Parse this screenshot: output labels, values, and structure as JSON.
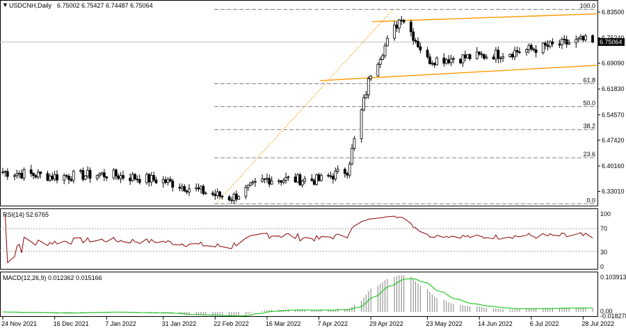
{
  "header": {
    "symbol": "USDCNH,Daily",
    "ohlc": "6.75002 6.75427 6.74487 6.75064"
  },
  "colors": {
    "fib": "#808080",
    "channel": "#ff9900",
    "rsi": "#8b0000",
    "macd_signal": "#00c000",
    "price_badge_bg": "#000000",
    "price_badge_fg": "#ffffff"
  },
  "price_panel": {
    "current_price": "6.75064",
    "y_ticks": [
      "6.83500",
      "6.76240",
      "6.69090",
      "6.61830",
      "6.54570",
      "6.47420",
      "6.40160",
      "6.33010"
    ],
    "fib_levels": [
      {
        "label": "100.0",
        "price": 6.8426
      },
      {
        "label": "61.8",
        "price": 6.6332
      },
      {
        "label": "50.0",
        "price": 6.5686
      },
      {
        "label": "38.2",
        "price": 6.5039
      },
      {
        "label": "23.6",
        "price": 6.4247
      },
      {
        "label": "0.0",
        "price": 6.2951
      }
    ]
  },
  "rsi_panel": {
    "label": "RSI(14) 52.6765",
    "levels": [
      "100",
      "70",
      "30",
      "0"
    ]
  },
  "macd_panel": {
    "label": "MACD(12,26,9) 0.012362 0.015166",
    "max_label": "0.103913",
    "zero_label": "0.00",
    "min_label": "-0.018278"
  },
  "x_labels": [
    "24 Nov 2021",
    "16 Dec 2021",
    "7 Jan 2022",
    "31 Jan 2022",
    "22 Feb 2022",
    "16 Mar 2022",
    "7 Apr 2022",
    "29 Apr 2022",
    "23 May 2022",
    "14 Jun 2022",
    "6 Jul 2022",
    "28 Jul 2022"
  ],
  "chart_data": {
    "type": "candlestick",
    "title": "USDCNH,Daily",
    "symbol": "USDCNH",
    "timeframe": "Daily",
    "last_bar": {
      "open": 6.75002,
      "high": 6.75427,
      "low": 6.74487,
      "close": 6.75064
    },
    "date_range": [
      "2021-11-24",
      "2022-08-01"
    ],
    "ylim": [
      6.29,
      6.865
    ],
    "fibonacci": [
      {
        "level": "100.0",
        "price": 6.8426
      },
      {
        "level": "61.8",
        "price": 6.6332
      },
      {
        "level": "50.0",
        "price": 6.5686
      },
      {
        "level": "38.2",
        "price": 6.5039
      },
      {
        "level": "23.6",
        "price": 6.4247
      },
      {
        "level": "0.0",
        "price": 6.2951
      }
    ],
    "close_anchors": [
      {
        "date": "2021-11-24",
        "close": 6.385
      },
      {
        "date": "2021-12-16",
        "close": 6.372
      },
      {
        "date": "2022-01-07",
        "close": 6.378
      },
      {
        "date": "2022-01-31",
        "close": 6.36
      },
      {
        "date": "2022-02-22",
        "close": 6.32
      },
      {
        "date": "2022-03-01",
        "close": 6.312
      },
      {
        "date": "2022-03-16",
        "close": 6.365
      },
      {
        "date": "2022-04-07",
        "close": 6.362
      },
      {
        "date": "2022-04-19",
        "close": 6.39
      },
      {
        "date": "2022-04-29",
        "close": 6.665
      },
      {
        "date": "2022-05-12",
        "close": 6.825
      },
      {
        "date": "2022-05-23",
        "close": 6.7
      },
      {
        "date": "2022-06-14",
        "close": 6.71
      },
      {
        "date": "2022-07-06",
        "close": 6.73
      },
      {
        "date": "2022-07-28",
        "close": 6.755
      },
      {
        "date": "2022-08-01",
        "close": 6.7506
      }
    ],
    "rsi": {
      "period": 14,
      "last": 52.6765,
      "levels": [
        100,
        70,
        30,
        0
      ]
    },
    "macd": {
      "fast": 12,
      "slow": 26,
      "signal": 9,
      "main": 0.012362,
      "signal_value": 0.015166,
      "axis_max": 0.103913,
      "axis_min": -0.018278
    }
  }
}
